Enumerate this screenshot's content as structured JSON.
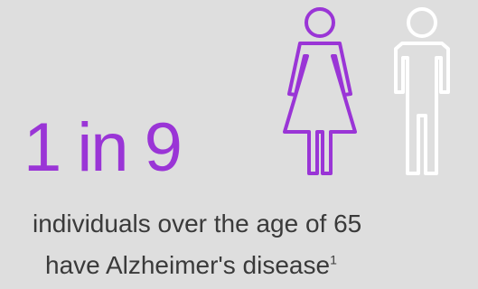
{
  "statistic": {
    "text": "1 in 9"
  },
  "caption": {
    "line1": "individuals over the age of 65",
    "line2": "have Alzheimer's disease",
    "footnote_marker": "1"
  },
  "icons": {
    "woman": "woman-figure-icon",
    "man": "man-figure-icon"
  },
  "colors": {
    "background": "#dedede",
    "accent": "#9a35d6",
    "text": "#3a3a3a",
    "man_icon": "#ffffff"
  }
}
